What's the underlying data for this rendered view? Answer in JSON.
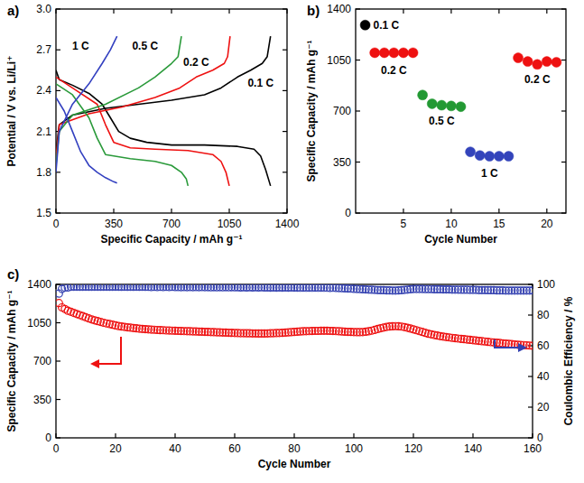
{
  "chart_data": [
    {
      "type": "line",
      "title": "a)",
      "x_label": "Specific Capacity / mAh g⁻¹",
      "y_label": "Potential / V vs. Li/Li⁺",
      "xlim": [
        0,
        1400
      ],
      "xticks": [
        0,
        350,
        700,
        1050,
        1400
      ],
      "ylim": [
        1.5,
        3.0
      ],
      "yticks": [
        1.5,
        1.8,
        2.1,
        2.4,
        2.7,
        {
          "value": 3.0,
          "label": "3.0"
        }
      ],
      "grid": false,
      "line_style": "solid",
      "series": [
        {
          "color": "#000000",
          "x": [
            0,
            20,
            100,
            200,
            280,
            330,
            380,
            450,
            550,
            700,
            900,
            1100,
            1200,
            1240,
            1270,
            1300
          ],
          "values": [
            2.55,
            2.48,
            2.44,
            2.38,
            2.3,
            2.2,
            2.1,
            2.05,
            2.02,
            2.0,
            2.0,
            1.99,
            1.97,
            1.92,
            1.82,
            1.7
          ]
        },
        {
          "color": "#000000",
          "x": [
            0,
            20,
            100,
            300,
            500,
            700,
            900,
            1000,
            1100,
            1180,
            1250,
            1280,
            1300
          ],
          "values": [
            1.95,
            2.15,
            2.22,
            2.27,
            2.3,
            2.33,
            2.37,
            2.42,
            2.5,
            2.55,
            2.6,
            2.65,
            2.8
          ]
        },
        {
          "color": "#ee1111",
          "x": [
            0,
            100,
            250,
            300,
            350,
            450,
            600,
            800,
            950,
            1000,
            1030,
            1050
          ],
          "values": [
            2.5,
            2.42,
            2.3,
            2.15,
            2.02,
            1.98,
            1.97,
            1.96,
            1.93,
            1.88,
            1.8,
            1.7
          ]
        },
        {
          "color": "#ee1111",
          "x": [
            0,
            20,
            200,
            400,
            600,
            750,
            850,
            950,
            1020,
            1040,
            1055
          ],
          "values": [
            1.9,
            2.15,
            2.23,
            2.28,
            2.35,
            2.42,
            2.5,
            2.55,
            2.6,
            2.65,
            2.8
          ]
        },
        {
          "color": "#2a9a3a",
          "x": [
            0,
            100,
            200,
            250,
            300,
            450,
            600,
            700,
            760,
            790,
            800
          ],
          "values": [
            2.45,
            2.37,
            2.2,
            2.05,
            1.93,
            1.9,
            1.88,
            1.85,
            1.8,
            1.75,
            1.7
          ]
        },
        {
          "color": "#2a9a3a",
          "x": [
            0,
            20,
            100,
            300,
            500,
            600,
            700,
            740,
            760
          ],
          "values": [
            1.85,
            2.1,
            2.22,
            2.3,
            2.42,
            2.5,
            2.6,
            2.65,
            2.8
          ]
        },
        {
          "color": "#3340c0",
          "x": [
            0,
            50,
            100,
            150,
            200,
            250,
            300,
            350,
            370
          ],
          "values": [
            2.35,
            2.25,
            2.1,
            1.95,
            1.85,
            1.8,
            1.76,
            1.73,
            1.72
          ]
        },
        {
          "color": "#3340c0",
          "x": [
            0,
            20,
            100,
            200,
            280,
            330,
            370
          ],
          "values": [
            1.8,
            2.1,
            2.3,
            2.45,
            2.6,
            2.7,
            2.8
          ]
        }
      ],
      "annotations": [
        {
          "text": "1 C",
          "x": 150,
          "y": 2.7
        },
        {
          "text": "0.5 C",
          "x": 540,
          "y": 2.7
        },
        {
          "text": "0.2 C",
          "x": 850,
          "y": 2.58
        },
        {
          "text": "0.1 C",
          "x": 1240,
          "y": 2.43
        }
      ]
    },
    {
      "type": "scatter",
      "title": "b)",
      "x_label": "Cycle Number",
      "y_label": "Specific Capacity / mAh g⁻¹",
      "xlim": [
        0,
        22
      ],
      "xticks": [
        5,
        10,
        15,
        20
      ],
      "ylim": [
        0,
        1400
      ],
      "yticks": [
        0,
        350,
        700,
        1050,
        1400
      ],
      "grid": false,
      "marker": "circle",
      "series": [
        {
          "name": "0.1 C",
          "color": "#000000",
          "x": [
            1
          ],
          "values": [
            1290
          ]
        },
        {
          "name": "0.2 C",
          "color": "#ee1111",
          "x": [
            2,
            3,
            4,
            5,
            6
          ],
          "values": [
            1100,
            1100,
            1100,
            1100,
            1100
          ]
        },
        {
          "name": "0.5 C",
          "color": "#229933",
          "x": [
            7,
            8,
            9,
            10,
            11
          ],
          "values": [
            810,
            750,
            740,
            735,
            730
          ]
        },
        {
          "name": "1 C",
          "color": "#3344bb",
          "x": [
            12,
            13,
            14,
            15,
            16
          ],
          "values": [
            420,
            395,
            390,
            390,
            390
          ]
        },
        {
          "name": "0.2 C",
          "color": "#ee1111",
          "x": [
            17,
            18,
            19,
            20,
            21
          ],
          "values": [
            1065,
            1040,
            1020,
            1040,
            1035
          ]
        }
      ]
    },
    {
      "type": "scatter",
      "title": "c)",
      "x_label": "Cycle Number",
      "y_label": "Specific Capacity / mAh g⁻¹",
      "y2_label": "Coulombic Efficiency / %",
      "xlim": [
        0,
        160
      ],
      "xticks": [
        0,
        20,
        40,
        60,
        80,
        100,
        120,
        140,
        160
      ],
      "ylim": [
        0,
        1400
      ],
      "yticks": [
        0,
        350,
        700,
        1050,
        1400
      ],
      "y2lim": [
        0,
        100
      ],
      "y2ticks": [
        0,
        20,
        40,
        60,
        80,
        100
      ],
      "grid": false,
      "marker": "open_circle",
      "series": [
        {
          "color": "#ee1111",
          "x": [
            1,
            2,
            3,
            4,
            5,
            6,
            7,
            8,
            9,
            10,
            11,
            12,
            13,
            14,
            15,
            16,
            17,
            18,
            19,
            20,
            21,
            22,
            23,
            24,
            25,
            26,
            27,
            28,
            29,
            30,
            31,
            32,
            33,
            34,
            35,
            36,
            37,
            38,
            39,
            40,
            41,
            42,
            43,
            44,
            45,
            46,
            47,
            48,
            49,
            50,
            51,
            52,
            53,
            54,
            55,
            56,
            57,
            58,
            59,
            60,
            61,
            62,
            63,
            64,
            65,
            66,
            67,
            68,
            69,
            70,
            71,
            72,
            73,
            74,
            75,
            76,
            77,
            78,
            79,
            80,
            81,
            82,
            83,
            84,
            85,
            86,
            87,
            88,
            89,
            90,
            91,
            92,
            93,
            94,
            95,
            96,
            97,
            98,
            99,
            100,
            101,
            102,
            103,
            104,
            105,
            106,
            107,
            108,
            109,
            110,
            111,
            112,
            113,
            114,
            115,
            116,
            117,
            118,
            119,
            120,
            121,
            122,
            123,
            124,
            125,
            126,
            127,
            128,
            129,
            130,
            131,
            132,
            133,
            134,
            135,
            136,
            137,
            138,
            139,
            140,
            141,
            142,
            143,
            144,
            145,
            146,
            147,
            148,
            149,
            150,
            151,
            152,
            153,
            154,
            155,
            156,
            157,
            158,
            159,
            160
          ],
          "values": [
            1230,
            1190,
            1175,
            1160,
            1150,
            1140,
            1130,
            1120,
            1110,
            1100,
            1090,
            1080,
            1072,
            1065,
            1058,
            1050,
            1044,
            1038,
            1032,
            1026,
            1020,
            1016,
            1012,
            1008,
            1005,
            1002,
            999,
            996,
            994,
            992,
            990,
            988,
            986,
            984,
            983,
            982,
            980,
            979,
            978,
            977,
            976,
            975,
            974,
            973,
            972,
            971,
            970,
            969,
            968,
            967,
            966,
            965,
            964,
            963,
            962,
            961,
            960,
            959,
            958,
            957,
            956,
            955,
            955,
            954,
            954,
            953,
            953,
            952,
            952,
            952,
            953,
            954,
            955,
            956,
            957,
            958,
            960,
            962,
            964,
            966,
            968,
            970,
            972,
            973,
            974,
            975,
            976,
            976,
            977,
            977,
            977,
            976,
            975,
            974,
            972,
            970,
            968,
            967,
            966,
            965,
            964,
            964,
            965,
            968,
            972,
            978,
            985,
            993,
            1000,
            1006,
            1012,
            1016,
            1018,
            1019,
            1018,
            1015,
            1010,
            1004,
            997,
            990,
            982,
            974,
            966,
            958,
            950,
            944,
            938,
            933,
            928,
            924,
            920,
            916,
            912,
            909,
            906,
            903,
            900,
            897,
            894,
            891,
            888,
            885,
            882,
            879,
            876,
            873,
            870,
            868,
            865,
            862,
            860,
            857,
            855,
            852,
            850,
            848,
            846,
            844,
            842,
            840
          ]
        },
        {
          "color": "#3340b0",
          "axis": "y2",
          "x": [
            1,
            2,
            3,
            4,
            5,
            6,
            7,
            8,
            9,
            10,
            11,
            12,
            13,
            14,
            15,
            16,
            17,
            18,
            19,
            20,
            21,
            22,
            23,
            24,
            25,
            26,
            27,
            28,
            29,
            30,
            31,
            32,
            33,
            34,
            35,
            36,
            37,
            38,
            39,
            40,
            41,
            42,
            43,
            44,
            45,
            46,
            47,
            48,
            49,
            50,
            51,
            52,
            53,
            54,
            55,
            56,
            57,
            58,
            59,
            60,
            61,
            62,
            63,
            64,
            65,
            66,
            67,
            68,
            69,
            70,
            71,
            72,
            73,
            74,
            75,
            76,
            77,
            78,
            79,
            80,
            81,
            82,
            83,
            84,
            85,
            86,
            87,
            88,
            89,
            90,
            91,
            92,
            93,
            94,
            95,
            96,
            97,
            98,
            99,
            100,
            101,
            102,
            103,
            104,
            105,
            106,
            107,
            108,
            109,
            110,
            111,
            112,
            113,
            114,
            115,
            116,
            117,
            118,
            119,
            120,
            121,
            122,
            123,
            124,
            125,
            126,
            127,
            128,
            129,
            130,
            131,
            132,
            133,
            134,
            135,
            136,
            137,
            138,
            139,
            140,
            141,
            142,
            143,
            144,
            145,
            146,
            147,
            148,
            149,
            150,
            151,
            152,
            153,
            154,
            155,
            156,
            157,
            158,
            159,
            160
          ],
          "values": [
            94,
            97,
            98,
            98,
            98.5,
            98.5,
            98.5,
            98.5,
            98.5,
            98.5,
            98.5,
            98.5,
            98.5,
            98.5,
            98.5,
            98.5,
            98.5,
            98.5,
            98.5,
            98.5,
            98.5,
            98.4,
            98.5,
            98.4,
            98.5,
            98.4,
            98.5,
            98.4,
            98.5,
            98.4,
            98.4,
            98.3,
            98.4,
            98.3,
            98.4,
            98.3,
            98.4,
            98.3,
            98.4,
            98.3,
            98.3,
            98.2,
            98.3,
            98.2,
            98.3,
            98.2,
            98.3,
            98.2,
            98.3,
            98.2,
            98.2,
            98.1,
            98.2,
            98.1,
            98.2,
            98.1,
            98.2,
            98.1,
            98.2,
            98.1,
            98.1,
            98.0,
            98.1,
            98.0,
            98.1,
            98.0,
            98.1,
            98.0,
            98.1,
            98.0,
            98.0,
            97.9,
            98.0,
            97.9,
            98.0,
            97.9,
            98.0,
            97.9,
            98.0,
            97.9,
            97.9,
            97.8,
            97.9,
            97.8,
            97.9,
            97.8,
            97.9,
            97.8,
            97.9,
            97.8,
            97.8,
            97.7,
            97.8,
            97.7,
            97.6,
            97.5,
            97.4,
            97.3,
            97.2,
            97.1,
            97.0,
            96.9,
            96.8,
            96.7,
            96.6,
            96.5,
            96.4,
            96.3,
            96.2,
            96.2,
            96.1,
            96.1,
            96.0,
            96.0,
            96.1,
            96.2,
            96.4,
            96.6,
            96.8,
            97.0,
            97.0,
            97.0,
            97.0,
            96.9,
            96.9,
            96.9,
            96.8,
            96.8,
            96.8,
            96.7,
            96.7,
            96.7,
            96.6,
            96.6,
            96.6,
            96.5,
            96.5,
            96.5,
            96.4,
            96.4,
            96.4,
            96.3,
            96.3,
            96.3,
            96.2,
            96.2,
            96.2,
            96.1,
            96.1,
            96.1,
            96.0,
            96.0,
            96.0,
            96.0,
            96.0,
            96.0,
            96.0,
            96.0,
            96.0,
            96.0
          ]
        }
      ]
    }
  ]
}
